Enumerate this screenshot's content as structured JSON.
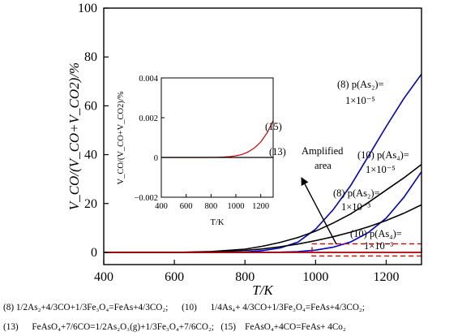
{
  "chart_data": [
    {
      "type": "line",
      "xlabel": "T/K",
      "ylabel": "V_CO/(V_CO+V_CO2)/%",
      "xlim": [
        400,
        1300
      ],
      "ylim": [
        -5,
        100
      ],
      "xticks": [
        400,
        600,
        800,
        1000,
        1200
      ],
      "yticks": [
        0,
        20,
        40,
        60,
        80,
        100
      ],
      "series": [
        {
          "id": "s8a",
          "color": "#0000cc",
          "x": [
            400,
            700,
            800,
            850,
            900,
            950,
            1000,
            1050,
            1100,
            1150,
            1200,
            1250,
            1300
          ],
          "y": [
            0,
            0,
            0.2,
            0.7,
            1.8,
            4.2,
            9.5,
            17.5,
            27.5,
            39.5,
            51.5,
            63,
            73
          ]
        },
        {
          "id": "s10a",
          "color": "#0000cc",
          "x": [
            400,
            800,
            900,
            950,
            1000,
            1050,
            1100,
            1150,
            1200,
            1250,
            1300
          ],
          "y": [
            0,
            0,
            0.1,
            0.3,
            0.9,
            2.1,
            4.3,
            8.2,
            14,
            22.5,
            33
          ]
        },
        {
          "id": "s10b",
          "color": "#000000",
          "x": [
            400,
            600,
            700,
            800,
            850,
            900,
            950,
            1000,
            1050,
            1100,
            1150,
            1200,
            1250,
            1300
          ],
          "y": [
            0,
            0,
            0.3,
            1.3,
            2.5,
            4.1,
            6.1,
            8.7,
            12,
            15.8,
            20.5,
            25.5,
            30.5,
            36
          ]
        },
        {
          "id": "s8b",
          "color": "#000000",
          "x": [
            400,
            600,
            700,
            800,
            850,
            900,
            950,
            1000,
            1050,
            1100,
            1150,
            1200,
            1250,
            1300
          ],
          "y": [
            0,
            0,
            0.2,
            0.8,
            1.4,
            2.3,
            3.4,
            4.8,
            6.4,
            8.3,
            10.5,
            13,
            16,
            19.5
          ]
        },
        {
          "id": "s13",
          "color": "#000000",
          "x": [
            400,
            1300
          ],
          "y": [
            0,
            0
          ]
        },
        {
          "id": "s15",
          "color": "#cc0000",
          "x": [
            400,
            1300
          ],
          "y": [
            0,
            0
          ]
        }
      ],
      "labels": {
        "l8a_1": "(8) p(As₂)=",
        "l8a_2": "1×10⁻⁵",
        "l10b_1": "(10) p(As₄)=",
        "l10b_2": "1×10⁻⁵",
        "l8b_1": "(8) p(As₂)=",
        "l8b_2": "1×10⁻³",
        "l10a_1": "(10) p(As₄)=",
        "l10a_2": "1×10⁻³",
        "amplified_1": "Amplified",
        "amplified_2": "area"
      },
      "annotation_box": {
        "x": [
          990,
          1300
        ],
        "y": [
          -1.5,
          3.5
        ],
        "style": "dashed",
        "color": "#cc0000"
      }
    },
    {
      "type": "line",
      "xlabel": "T/K",
      "ylabel": "V_CO/(V_CO+V_CO2)/%",
      "xlim": [
        400,
        1300
      ],
      "ylim": [
        -0.002,
        0.004
      ],
      "xticks": [
        400,
        600,
        800,
        1000,
        1200
      ],
      "yticks": [
        -0.002,
        0,
        0.002,
        0.004
      ],
      "ytick_labels": [
        "−0.002",
        "0",
        "0.002",
        "0.004"
      ],
      "series": [
        {
          "id": "i15",
          "name": "(15)",
          "color": "#cc0000",
          "x": [
            400,
            750,
            800,
            850,
            900,
            950,
            1000,
            1050,
            1100,
            1150,
            1200,
            1250,
            1300
          ],
          "y": [
            0,
            0,
            5e-06,
            1e-05,
            2e-05,
            4e-05,
            8e-05,
            0.00015,
            0.00028,
            0.00048,
            0.00078,
            0.00122,
            0.00185
          ]
        },
        {
          "id": "i13",
          "name": "(13)",
          "color": "#000000",
          "x": [
            400,
            1300
          ],
          "y": [
            0,
            0
          ]
        }
      ]
    }
  ],
  "caption": {
    "line1": "(8) 1/2As₂+4/3CO+1/3Fe₃O₄=FeAs+4/3CO₂;      (10)      1/4As₄+ 4/3CO+1/3Fe₃O₄=FeAs+4/3CO₂;",
    "line2": "(13)      FeAsO₄+7/6CO=1/2As₂O₃(g)+1/3Fe₃O₄+7/6CO₂;   (15)    FeAsO₄+4CO=FeAs+ 4Co₂"
  }
}
